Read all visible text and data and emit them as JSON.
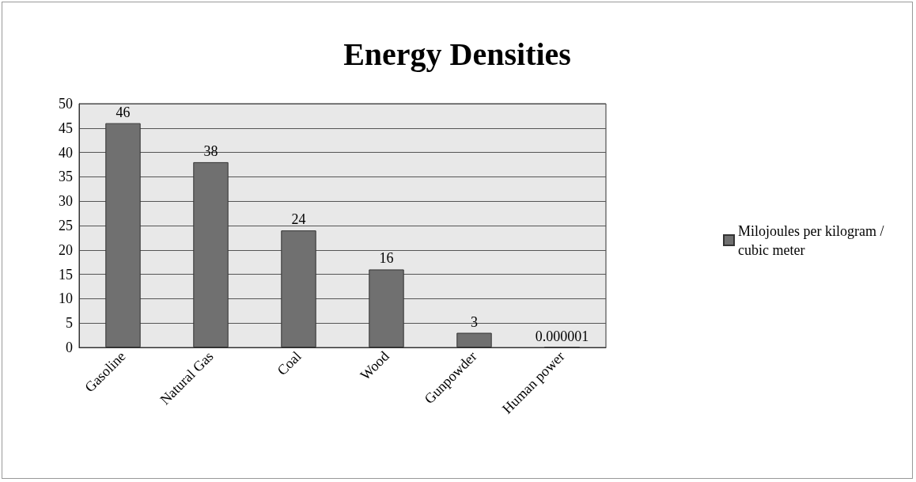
{
  "chart_data": {
    "type": "bar",
    "title": "Energy Densities",
    "categories": [
      "Gasoline",
      "Natural Gas",
      "Coal",
      "Wood",
      "Gunpowder",
      "Human power"
    ],
    "series": [
      {
        "name": "Milojoules per kilogram / cubic meter",
        "color": "#707070",
        "values": [
          46,
          38,
          24,
          16,
          3,
          1e-06
        ],
        "value_labels": [
          "46",
          "38",
          "24",
          "16",
          "3",
          "0.000001"
        ]
      }
    ],
    "ylim": [
      0,
      50
    ],
    "yticks": [
      0,
      5,
      10,
      15,
      20,
      25,
      30,
      35,
      40,
      45,
      50
    ],
    "grid": "y",
    "legend": "right"
  }
}
